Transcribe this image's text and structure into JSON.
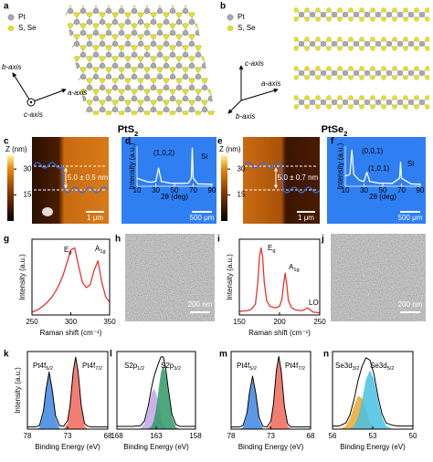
{
  "figure": {
    "a": {
      "label": "a",
      "legend": [
        "Pt",
        "S, Se"
      ],
      "axes": [
        "b-axis",
        "a-axis",
        "c-axis"
      ]
    },
    "b": {
      "label": "b",
      "legend": [
        "Pt",
        "S, Se"
      ],
      "axes": [
        "c-axis",
        "a-axis",
        "b-axis"
      ]
    },
    "titles": [
      {
        "text": "PtS",
        "sub": "2"
      },
      {
        "text": "PtSe",
        "sub": "2"
      }
    ],
    "afm": [
      {
        "label": "c",
        "zlabel": "Z (nm)",
        "zlim": [
          0,
          38
        ],
        "zticks": [
          30,
          15
        ],
        "step": "5.0 ± 0.5 nm",
        "scale": "1 μm"
      },
      {
        "label": "e",
        "zlabel": "Z (nm)",
        "zlim": [
          0,
          38
        ],
        "zticks": [
          30,
          15
        ],
        "step": "5.0 ± 0.7 nm",
        "scale": "1 μm"
      }
    ],
    "optical": [
      {
        "label": "d",
        "scale": "500 μm"
      },
      {
        "label": "f",
        "scale": "500 μm"
      }
    ],
    "sem": [
      {
        "label": "h",
        "scale": "200 nm"
      },
      {
        "label": "j",
        "scale": "200 nm"
      }
    ]
  },
  "chart_data": [
    {
      "type": "line",
      "ylabel": "Intensity (a.u.)",
      "xlabel": "2θ (deg)",
      "x": [
        10,
        20,
        25,
        30,
        33,
        36,
        45,
        55,
        65,
        68,
        69,
        70,
        75,
        90
      ],
      "values": [
        0.2,
        0.12,
        0.1,
        0.12,
        0.45,
        0.12,
        0.08,
        0.07,
        0.08,
        0.2,
        0.95,
        0.2,
        0.06,
        0.05
      ],
      "color": "#ffffff",
      "xlim": [
        10,
        90
      ],
      "ylim": [
        0,
        1
      ],
      "xticks": [
        10,
        30,
        50,
        70,
        90
      ],
      "annotations": [
        {
          "text": "(1,0,2)"
        },
        {
          "text": "Si"
        }
      ]
    },
    {
      "type": "line",
      "ylabel": "Intensity (a.u.)",
      "xlabel": "2θ (deg)",
      "x": [
        10,
        15,
        17,
        19,
        25,
        30,
        33,
        36,
        45,
        60,
        68,
        69,
        70,
        80,
        90
      ],
      "values": [
        0.25,
        0.3,
        0.9,
        0.3,
        0.15,
        0.12,
        0.35,
        0.12,
        0.08,
        0.07,
        0.2,
        0.6,
        0.2,
        0.06,
        0.05
      ],
      "color": "#ffffff",
      "xlim": [
        10,
        90
      ],
      "ylim": [
        0,
        1
      ],
      "xticks": [
        10,
        30,
        50,
        70,
        90
      ],
      "annotations": [
        {
          "text": "(0,0,1)"
        },
        {
          "text": "(1,0,1)"
        },
        {
          "text": "Si"
        }
      ]
    },
    {
      "type": "line",
      "label": "g",
      "ylabel": "Intensity (a.u.)",
      "xlabel": "Raman shift (cm⁻¹)",
      "x": [
        250,
        255,
        260,
        265,
        270,
        275,
        280,
        285,
        290,
        295,
        300,
        305,
        310,
        315,
        320,
        325,
        330,
        335,
        340,
        345,
        350
      ],
      "values": [
        0.04,
        0.06,
        0.09,
        0.13,
        0.18,
        0.24,
        0.32,
        0.42,
        0.55,
        0.72,
        0.9,
        0.93,
        0.68,
        0.45,
        0.38,
        0.42,
        0.62,
        0.75,
        0.45,
        0.25,
        0.18
      ],
      "color": "#e8342a",
      "xlim": [
        250,
        350
      ],
      "ylim": [
        0,
        1.05
      ],
      "xticks": [
        250,
        300,
        350
      ],
      "annotations": [
        {
          "text": "E",
          "sub": "g"
        },
        {
          "text": "A",
          "sub": "1g"
        }
      ]
    },
    {
      "type": "line",
      "label": "i",
      "ylabel": "Intensity (a.u.)",
      "xlabel": "Raman shift (cm⁻¹)",
      "x": [
        150,
        160,
        165,
        170,
        173,
        175,
        177,
        179,
        181,
        184,
        188,
        195,
        200,
        203,
        205,
        207,
        209,
        211,
        215,
        220,
        228,
        232,
        235,
        238,
        242,
        250
      ],
      "values": [
        0.05,
        0.06,
        0.08,
        0.15,
        0.45,
        0.8,
        0.93,
        0.8,
        0.45,
        0.2,
        0.12,
        0.1,
        0.12,
        0.22,
        0.42,
        0.58,
        0.42,
        0.2,
        0.1,
        0.07,
        0.06,
        0.08,
        0.1,
        0.07,
        0.04,
        0.03
      ],
      "color": "#e8342a",
      "xlim": [
        150,
        250
      ],
      "ylim": [
        0,
        1.05
      ],
      "xticks": [
        150,
        200,
        250
      ],
      "annotations": [
        {
          "text": "E",
          "sub": "g"
        },
        {
          "text": "A",
          "sub": "1g"
        },
        {
          "text": "LO"
        }
      ]
    },
    {
      "type": "area",
      "label": "k",
      "ylabel": "Intensity (a.u.)",
      "xlabel": "Binding Energy (eV)",
      "x": [
        78,
        77,
        76.5,
        76,
        75.7,
        75.3,
        74.9,
        74.5,
        74,
        73.5,
        73,
        72.7,
        72.3,
        72,
        71.7,
        71.3,
        70.9,
        70.5,
        70,
        69,
        68
      ],
      "series": [
        {
          "name": "Pt4f",
          "sub": "5/2",
          "color": "#3d86e0",
          "values": [
            0,
            0,
            0.02,
            0.23,
            0.52,
            0.78,
            0.52,
            0.16,
            0.01,
            0,
            0,
            0,
            0,
            0,
            0,
            0,
            0,
            0,
            0,
            0,
            0
          ]
        },
        {
          "name": "Pt4f",
          "sub": "7/2",
          "color": "#f0675b",
          "values": [
            0,
            0,
            0,
            0,
            0,
            0,
            0,
            0,
            0,
            0,
            0.08,
            0.29,
            0.78,
            0.98,
            0.78,
            0.29,
            0.05,
            0,
            0,
            0,
            0
          ]
        },
        {
          "color": "#000000",
          "values": [
            0.03,
            0.03,
            0.05,
            0.26,
            0.55,
            0.81,
            0.55,
            0.19,
            0.05,
            0.04,
            0.12,
            0.33,
            0.82,
            1.02,
            0.82,
            0.33,
            0.08,
            0.04,
            0.03,
            0.03,
            0.03
          ]
        }
      ],
      "xlim": [
        78,
        68
      ],
      "ylim": [
        0,
        1.1
      ],
      "xticks": [
        78,
        73,
        68
      ]
    },
    {
      "type": "area",
      "label": "l",
      "xlabel": "Binding Energy (eV)",
      "x": [
        168,
        166,
        165,
        164.5,
        164,
        163.6,
        163.3,
        163,
        162.7,
        162.4,
        162.1,
        161.8,
        161.5,
        161,
        160.5,
        160,
        159,
        158
      ],
      "series": [
        {
          "name": "S2p",
          "sub": "1/2",
          "color": "#c4a3e6",
          "values": [
            0,
            0,
            0.01,
            0.08,
            0.3,
            0.53,
            0.6,
            0.53,
            0.36,
            0.19,
            0.08,
            0.03,
            0.01,
            0,
            0,
            0,
            0,
            0
          ]
        },
        {
          "name": "S2p",
          "sub": "3/2",
          "color": "#2e9a66",
          "values": [
            0,
            0,
            0,
            0,
            0.01,
            0.04,
            0.13,
            0.31,
            0.58,
            0.84,
            0.95,
            0.84,
            0.58,
            0.18,
            0.03,
            0,
            0,
            0
          ]
        },
        {
          "color": "#000000",
          "values": [
            0.04,
            0.04,
            0.05,
            0.12,
            0.35,
            0.61,
            0.77,
            0.88,
            0.98,
            1.07,
            1.07,
            0.91,
            0.63,
            0.22,
            0.07,
            0.04,
            0.04,
            0.04
          ]
        }
      ],
      "xlim": [
        168,
        158
      ],
      "ylim": [
        0,
        1.15
      ],
      "xticks": [
        168,
        163,
        158
      ]
    },
    {
      "type": "area",
      "label": "m",
      "xlabel": "Binding Energy (eV)",
      "x": [
        78,
        77,
        76.5,
        76,
        75.7,
        75.3,
        74.9,
        74.5,
        74,
        73.5,
        73,
        72.7,
        72.3,
        72,
        71.7,
        71.3,
        70.9,
        70.5,
        70,
        69,
        68
      ],
      "series": [
        {
          "name": "Pt4f",
          "sub": "5/2",
          "color": "#3d86e0",
          "values": [
            0,
            0,
            0.02,
            0.2,
            0.48,
            0.72,
            0.48,
            0.14,
            0.01,
            0,
            0,
            0,
            0,
            0,
            0,
            0,
            0,
            0,
            0,
            0,
            0
          ]
        },
        {
          "name": "Pt4f",
          "sub": "7/2",
          "color": "#f0675b",
          "values": [
            0,
            0,
            0,
            0,
            0,
            0,
            0,
            0,
            0,
            0,
            0.08,
            0.3,
            0.8,
            1.0,
            0.8,
            0.3,
            0.05,
            0,
            0,
            0,
            0
          ]
        },
        {
          "color": "#000000",
          "values": [
            0.03,
            0.03,
            0.05,
            0.23,
            0.51,
            0.75,
            0.51,
            0.17,
            0.04,
            0.03,
            0.11,
            0.33,
            0.83,
            1.03,
            0.83,
            0.33,
            0.08,
            0.03,
            0.03,
            0.03,
            0.03
          ]
        }
      ],
      "xlim": [
        78,
        68
      ],
      "ylim": [
        0,
        1.1
      ],
      "xticks": [
        78,
        73,
        68
      ]
    },
    {
      "type": "area",
      "label": "n",
      "xlabel": "Binding Energy (eV)",
      "x": [
        56,
        55.5,
        55,
        54.7,
        54.4,
        54.1,
        53.8,
        53.5,
        53.2,
        52.9,
        52.6,
        52.3,
        52,
        51.5,
        51,
        50.5,
        50
      ],
      "series": [
        {
          "name": "Se3d",
          "sub": "3/2",
          "color": "#f0a62e",
          "values": [
            0,
            0,
            0.05,
            0.17,
            0.37,
            0.54,
            0.5,
            0.3,
            0.11,
            0.03,
            0.01,
            0,
            0,
            0,
            0,
            0,
            0
          ]
        },
        {
          "name": "Se3d",
          "sub": "5/2",
          "color": "#47c1e3",
          "values": [
            0,
            0,
            0,
            0.01,
            0.05,
            0.19,
            0.46,
            0.8,
            0.95,
            0.8,
            0.46,
            0.19,
            0.05,
            0,
            0,
            0,
            0
          ]
        },
        {
          "color": "#000000",
          "values": [
            0.05,
            0.05,
            0.1,
            0.23,
            0.47,
            0.78,
            1.01,
            1.15,
            1.11,
            0.88,
            0.52,
            0.24,
            0.1,
            0.06,
            0.05,
            0.05,
            0.05
          ]
        }
      ],
      "xlim": [
        56,
        50
      ],
      "ylim": [
        0,
        1.25
      ],
      "xticks": [
        56,
        53,
        50
      ]
    }
  ]
}
